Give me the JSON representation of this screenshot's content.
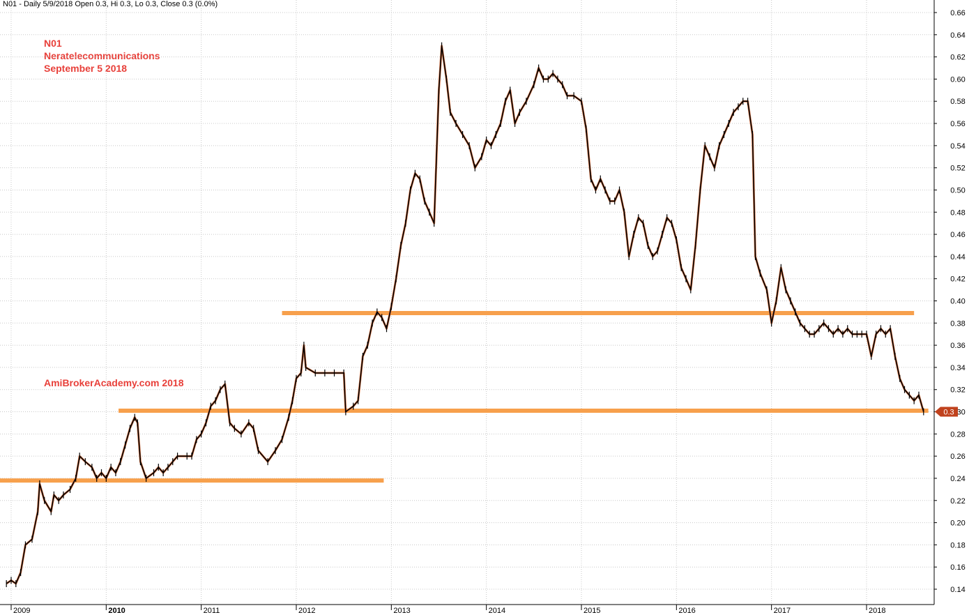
{
  "header": {
    "text": "N01 - Daily 5/9/2018 Open 0.3, Hi 0.3, Lo 0.3, Close 0.3 (0.0%)"
  },
  "annotations": {
    "symbol": "N01",
    "company": "Neratelecommunications",
    "date": "September 5 2018",
    "watermark": "AmiBrokerAcademy.com  2018"
  },
  "colors": {
    "background": "#ffffff",
    "grid": "#c8c8c8",
    "price_line": "#000000",
    "price_body": "#e07a4a",
    "support_line": "#f7a04c",
    "annotation": "#e8403a",
    "last_price_badge": "#c0421d"
  },
  "chart_data": {
    "type": "line",
    "title": "N01 - Daily 5/9/2018 Open 0.3, Hi 0.3, Lo 0.3, Close 0.3 (0.0%)",
    "xlabel": "",
    "ylabel": "",
    "x_range": [
      2009.0,
      2018.65
    ],
    "ylim": [
      0.13,
      0.67
    ],
    "y_axis_position": "right",
    "grid": true,
    "x_ticks": [
      {
        "label": "2009",
        "value": 2009.0,
        "bold": false
      },
      {
        "label": "2010",
        "value": 2010.0,
        "bold": true
      },
      {
        "label": "2011",
        "value": 2011.0,
        "bold": false
      },
      {
        "label": "2012",
        "value": 2012.0,
        "bold": false
      },
      {
        "label": "2013",
        "value": 2013.0,
        "bold": false
      },
      {
        "label": "2014",
        "value": 2014.0,
        "bold": false
      },
      {
        "label": "2015",
        "value": 2015.0,
        "bold": false
      },
      {
        "label": "2016",
        "value": 2016.0,
        "bold": false
      },
      {
        "label": "2017",
        "value": 2017.0,
        "bold": false
      },
      {
        "label": "2018",
        "value": 2018.0,
        "bold": false
      }
    ],
    "y_ticks": [
      "0.14",
      "0.16",
      "0.18",
      "0.20",
      "0.22",
      "0.24",
      "0.26",
      "0.28",
      "0.30",
      "0.32",
      "0.34",
      "0.36",
      "0.38",
      "0.40",
      "0.42",
      "0.44",
      "0.46",
      "0.48",
      "0.50",
      "0.52",
      "0.54",
      "0.56",
      "0.58",
      "0.60",
      "0.62",
      "0.64",
      "0.66"
    ],
    "series": [
      {
        "price": [
          [
            2008.95,
            0.145
          ],
          [
            2009.0,
            0.148
          ],
          [
            2009.05,
            0.145
          ],
          [
            2009.1,
            0.155
          ],
          [
            2009.15,
            0.18
          ],
          [
            2009.22,
            0.185
          ],
          [
            2009.28,
            0.21
          ],
          [
            2009.3,
            0.235
          ],
          [
            2009.35,
            0.22
          ],
          [
            2009.42,
            0.21
          ],
          [
            2009.45,
            0.225
          ],
          [
            2009.5,
            0.22
          ],
          [
            2009.55,
            0.225
          ],
          [
            2009.62,
            0.23
          ],
          [
            2009.68,
            0.24
          ],
          [
            2009.72,
            0.26
          ],
          [
            2009.78,
            0.255
          ],
          [
            2009.85,
            0.25
          ],
          [
            2009.9,
            0.24
          ],
          [
            2009.95,
            0.245
          ],
          [
            2010.0,
            0.24
          ],
          [
            2010.05,
            0.25
          ],
          [
            2010.1,
            0.245
          ],
          [
            2010.15,
            0.255
          ],
          [
            2010.2,
            0.27
          ],
          [
            2010.25,
            0.285
          ],
          [
            2010.3,
            0.295
          ],
          [
            2010.33,
            0.29
          ],
          [
            2010.36,
            0.255
          ],
          [
            2010.42,
            0.24
          ],
          [
            2010.5,
            0.245
          ],
          [
            2010.55,
            0.25
          ],
          [
            2010.6,
            0.245
          ],
          [
            2010.65,
            0.25
          ],
          [
            2010.7,
            0.255
          ],
          [
            2010.75,
            0.26
          ],
          [
            2010.85,
            0.26
          ],
          [
            2010.9,
            0.26
          ],
          [
            2010.95,
            0.275
          ],
          [
            2011.0,
            0.28
          ],
          [
            2011.05,
            0.29
          ],
          [
            2011.1,
            0.305
          ],
          [
            2011.15,
            0.31
          ],
          [
            2011.2,
            0.32
          ],
          [
            2011.25,
            0.325
          ],
          [
            2011.3,
            0.29
          ],
          [
            2011.35,
            0.285
          ],
          [
            2011.42,
            0.28
          ],
          [
            2011.5,
            0.29
          ],
          [
            2011.55,
            0.285
          ],
          [
            2011.6,
            0.265
          ],
          [
            2011.7,
            0.255
          ],
          [
            2011.78,
            0.265
          ],
          [
            2011.85,
            0.275
          ],
          [
            2011.92,
            0.295
          ],
          [
            2011.96,
            0.31
          ],
          [
            2012.0,
            0.33
          ],
          [
            2012.05,
            0.335
          ],
          [
            2012.08,
            0.36
          ],
          [
            2012.1,
            0.34
          ],
          [
            2012.2,
            0.335
          ],
          [
            2012.3,
            0.335
          ],
          [
            2012.4,
            0.335
          ],
          [
            2012.5,
            0.335
          ],
          [
            2012.52,
            0.3
          ],
          [
            2012.6,
            0.305
          ],
          [
            2012.65,
            0.31
          ],
          [
            2012.7,
            0.35
          ],
          [
            2012.75,
            0.36
          ],
          [
            2012.8,
            0.38
          ],
          [
            2012.85,
            0.39
          ],
          [
            2012.9,
            0.385
          ],
          [
            2012.95,
            0.375
          ],
          [
            2013.0,
            0.395
          ],
          [
            2013.05,
            0.42
          ],
          [
            2013.1,
            0.45
          ],
          [
            2013.15,
            0.47
          ],
          [
            2013.2,
            0.5
          ],
          [
            2013.25,
            0.515
          ],
          [
            2013.3,
            0.51
          ],
          [
            2013.35,
            0.49
          ],
          [
            2013.4,
            0.48
          ],
          [
            2013.45,
            0.47
          ],
          [
            2013.5,
            0.59
          ],
          [
            2013.53,
            0.63
          ],
          [
            2013.58,
            0.6
          ],
          [
            2013.62,
            0.57
          ],
          [
            2013.68,
            0.56
          ],
          [
            2013.75,
            0.55
          ],
          [
            2013.82,
            0.54
          ],
          [
            2013.88,
            0.52
          ],
          [
            2013.95,
            0.53
          ],
          [
            2014.0,
            0.545
          ],
          [
            2014.05,
            0.54
          ],
          [
            2014.1,
            0.55
          ],
          [
            2014.15,
            0.56
          ],
          [
            2014.2,
            0.58
          ],
          [
            2014.25,
            0.59
          ],
          [
            2014.3,
            0.56
          ],
          [
            2014.35,
            0.57
          ],
          [
            2014.42,
            0.58
          ],
          [
            2014.5,
            0.595
          ],
          [
            2014.55,
            0.61
          ],
          [
            2014.6,
            0.6
          ],
          [
            2014.65,
            0.6
          ],
          [
            2014.7,
            0.605
          ],
          [
            2014.75,
            0.6
          ],
          [
            2014.8,
            0.595
          ],
          [
            2014.85,
            0.585
          ],
          [
            2014.92,
            0.585
          ],
          [
            2015.0,
            0.58
          ],
          [
            2015.05,
            0.555
          ],
          [
            2015.1,
            0.51
          ],
          [
            2015.15,
            0.5
          ],
          [
            2015.2,
            0.51
          ],
          [
            2015.25,
            0.5
          ],
          [
            2015.3,
            0.49
          ],
          [
            2015.35,
            0.49
          ],
          [
            2015.4,
            0.5
          ],
          [
            2015.45,
            0.48
          ],
          [
            2015.5,
            0.44
          ],
          [
            2015.55,
            0.46
          ],
          [
            2015.6,
            0.475
          ],
          [
            2015.65,
            0.47
          ],
          [
            2015.7,
            0.45
          ],
          [
            2015.75,
            0.44
          ],
          [
            2015.8,
            0.445
          ],
          [
            2015.85,
            0.46
          ],
          [
            2015.9,
            0.475
          ],
          [
            2015.95,
            0.47
          ],
          [
            2016.0,
            0.455
          ],
          [
            2016.05,
            0.43
          ],
          [
            2016.1,
            0.42
          ],
          [
            2016.15,
            0.41
          ],
          [
            2016.2,
            0.45
          ],
          [
            2016.25,
            0.5
          ],
          [
            2016.3,
            0.54
          ],
          [
            2016.35,
            0.53
          ],
          [
            2016.4,
            0.52
          ],
          [
            2016.45,
            0.54
          ],
          [
            2016.5,
            0.55
          ],
          [
            2016.55,
            0.56
          ],
          [
            2016.6,
            0.57
          ],
          [
            2016.65,
            0.575
          ],
          [
            2016.7,
            0.58
          ],
          [
            2016.75,
            0.58
          ],
          [
            2016.8,
            0.55
          ],
          [
            2016.83,
            0.44
          ],
          [
            2016.88,
            0.425
          ],
          [
            2016.95,
            0.41
          ],
          [
            2017.0,
            0.38
          ],
          [
            2017.05,
            0.4
          ],
          [
            2017.1,
            0.43
          ],
          [
            2017.15,
            0.41
          ],
          [
            2017.2,
            0.4
          ],
          [
            2017.25,
            0.39
          ],
          [
            2017.3,
            0.38
          ],
          [
            2017.35,
            0.375
          ],
          [
            2017.4,
            0.37
          ],
          [
            2017.45,
            0.37
          ],
          [
            2017.5,
            0.375
          ],
          [
            2017.55,
            0.38
          ],
          [
            2017.6,
            0.375
          ],
          [
            2017.65,
            0.37
          ],
          [
            2017.7,
            0.375
          ],
          [
            2017.75,
            0.37
          ],
          [
            2017.8,
            0.375
          ],
          [
            2017.85,
            0.37
          ],
          [
            2017.9,
            0.37
          ],
          [
            2017.95,
            0.37
          ],
          [
            2018.0,
            0.37
          ],
          [
            2018.05,
            0.35
          ],
          [
            2018.1,
            0.37
          ],
          [
            2018.15,
            0.375
          ],
          [
            2018.2,
            0.37
          ],
          [
            2018.25,
            0.375
          ],
          [
            2018.3,
            0.35
          ],
          [
            2018.35,
            0.33
          ],
          [
            2018.4,
            0.32
          ],
          [
            2018.45,
            0.315
          ],
          [
            2018.5,
            0.31
          ],
          [
            2018.55,
            0.315
          ],
          [
            2018.6,
            0.3
          ]
        ]
      }
    ],
    "support_lines": [
      {
        "y": 0.389,
        "x_start": 2011.85,
        "x_end": 2018.5
      },
      {
        "y": 0.301,
        "x_start": 2010.13,
        "x_end": 2018.65
      },
      {
        "y": 0.238,
        "x_start": 2008.82,
        "x_end": 2012.92
      }
    ],
    "last_price": {
      "label": "0.3",
      "value": 0.3
    }
  }
}
